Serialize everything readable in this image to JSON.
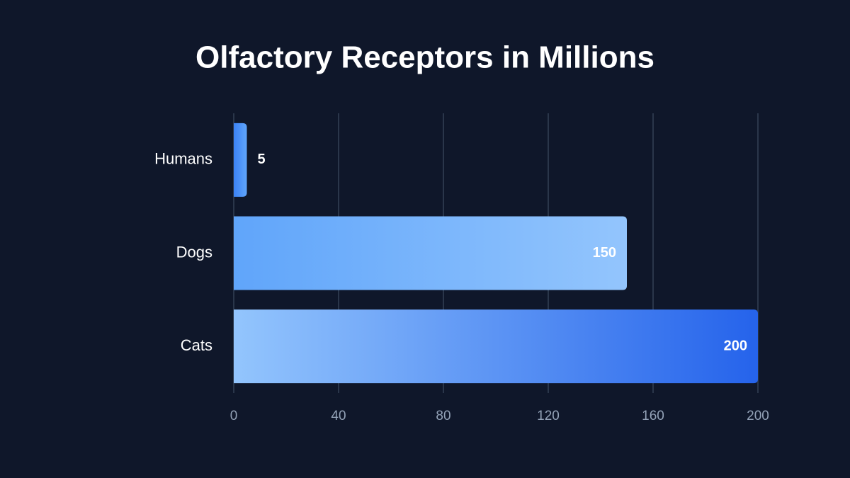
{
  "chart_data": {
    "type": "bar",
    "orientation": "horizontal",
    "title": "Olfactory Receptors in Millions",
    "categories": [
      "Humans",
      "Dogs",
      "Cats"
    ],
    "values": [
      5,
      150,
      200
    ],
    "colors": [
      [
        "#3b82f6",
        "#60a5fa"
      ],
      [
        "#60a5fa",
        "#93c5fd"
      ],
      [
        "#93c5fd",
        "#2563eb"
      ]
    ],
    "xlim": [
      0,
      200
    ],
    "xticks": [
      0,
      40,
      80,
      120,
      160,
      200
    ],
    "grid": true
  }
}
